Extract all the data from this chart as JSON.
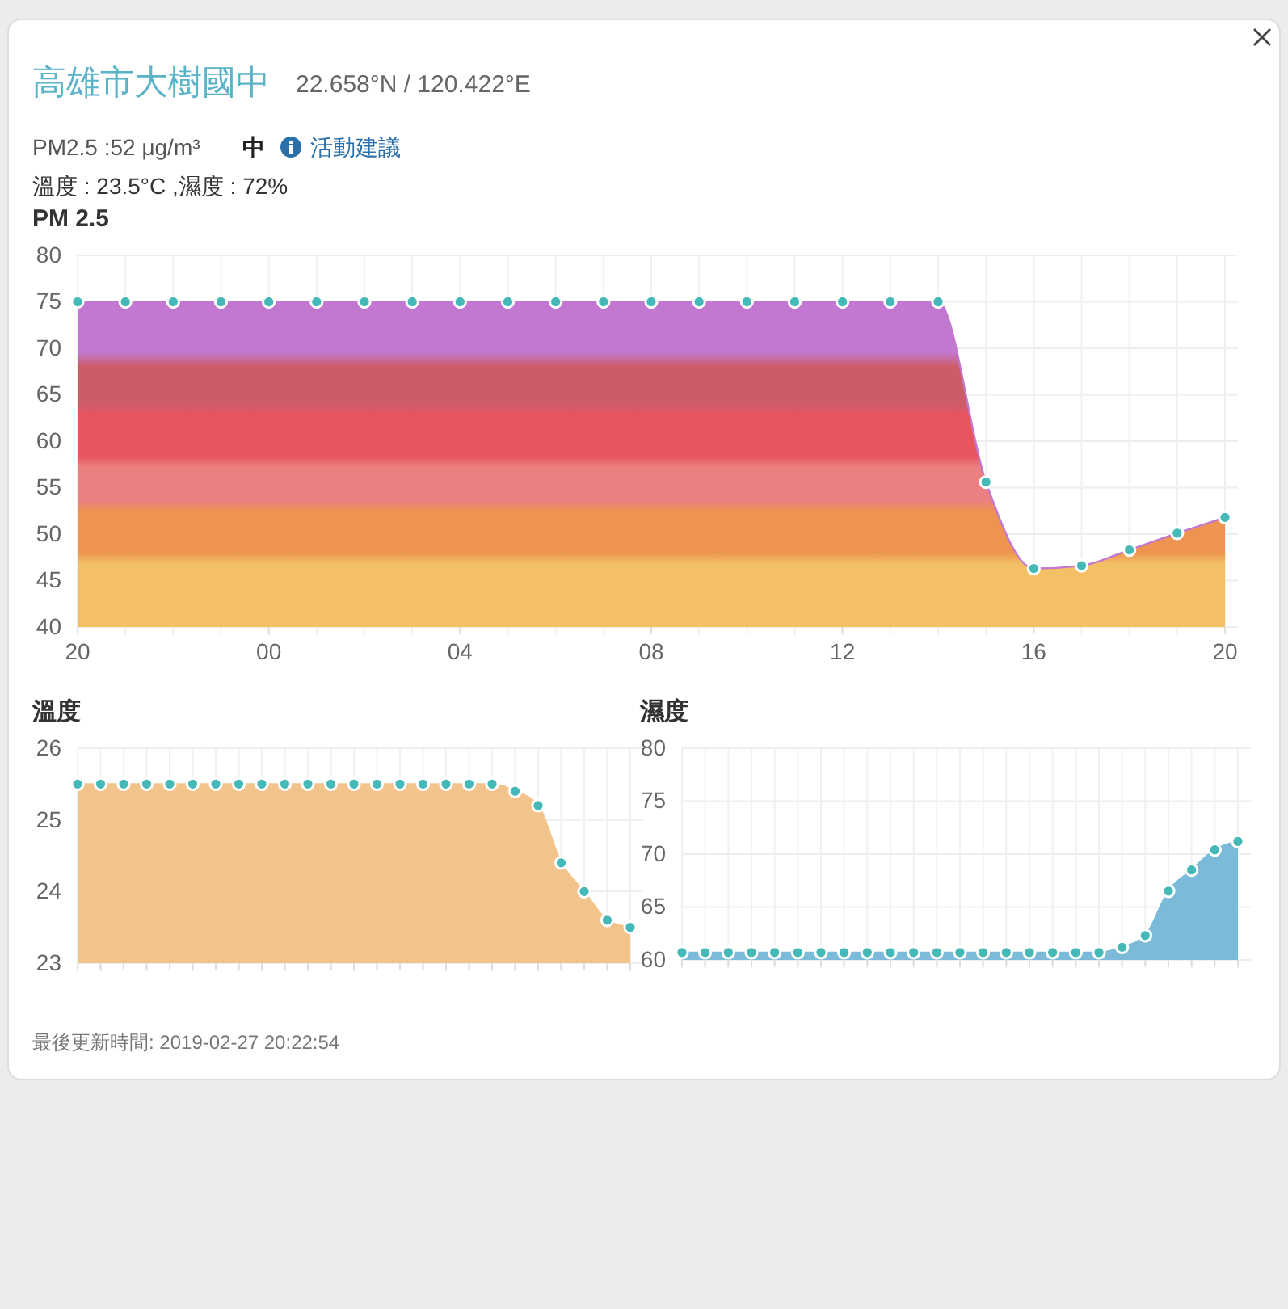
{
  "chart_data": [
    {
      "type": "other",
      "title": "高雄市大樹國中",
      "subtitle": "22.658°N / 120.422°E",
      "annotations": [
        "PM2.5 :52 μg/m³",
        "中",
        "活動建議",
        "溫度 : 23.5°C ,濕度 : 72%",
        "最後更新時間: 2019-02-27 20:22:54"
      ]
    },
    {
      "type": "area",
      "title": "PM 2.5",
      "x": [
        "2019-02-26T20:00",
        "2019-02-26T21:00",
        "2019-02-26T22:00",
        "2019-02-26T23:00",
        "2019-02-27T00:00",
        "2019-02-27T01:00",
        "2019-02-27T02:00",
        "2019-02-27T03:00",
        "2019-02-27T04:00",
        "2019-02-27T05:00",
        "2019-02-27T06:00",
        "2019-02-27T07:00",
        "2019-02-27T08:00",
        "2019-02-27T09:00",
        "2019-02-27T10:00",
        "2019-02-27T11:00",
        "2019-02-27T12:00",
        "2019-02-27T13:00",
        "2019-02-27T14:00",
        "2019-02-27T15:00",
        "2019-02-27T16:00",
        "2019-02-27T17:00",
        "2019-02-27T18:00",
        "2019-02-27T19:00",
        "2019-02-27T20:00"
      ],
      "series": [
        {
          "color": "#c278d0",
          "values": [
            75,
            75,
            75,
            75,
            75,
            75,
            75,
            75,
            75,
            75,
            75,
            75,
            75,
            75,
            75,
            75,
            75,
            75,
            75,
            55.6,
            46.3,
            46.6,
            48.3,
            50.1,
            51.8
          ]
        }
      ],
      "xlim": [
        "2019-02-26T20:00",
        "2019-02-27T20:00"
      ],
      "xticks": [
        {
          "value": "2019-02-26T20:00",
          "label": "20"
        },
        {
          "value": "2019-02-27T00:00",
          "label": "00"
        },
        {
          "value": "2019-02-27T04:00",
          "label": "04"
        },
        {
          "value": "2019-02-27T08:00",
          "label": "08"
        },
        {
          "value": "2019-02-27T12:00",
          "label": "12"
        },
        {
          "value": "2019-02-27T16:00",
          "label": "16"
        },
        {
          "value": "2019-02-27T20:00",
          "label": "20"
        }
      ],
      "ylim": [
        40,
        80
      ],
      "yticks": [
        40,
        45,
        50,
        55,
        60,
        65,
        70,
        75,
        80
      ],
      "grid": true,
      "marker": "circle"
    },
    {
      "type": "area",
      "title": "溫度",
      "categories": [
        null,
        null,
        null,
        null,
        null,
        null,
        null,
        null,
        null,
        null,
        null,
        null,
        null,
        null,
        null,
        null,
        null,
        null,
        null,
        null,
        null,
        null,
        null,
        null,
        null
      ],
      "series": [
        {
          "color": "#f2c48c",
          "values": [
            25.5,
            25.5,
            25.5,
            25.5,
            25.5,
            25.5,
            25.5,
            25.5,
            25.5,
            25.5,
            25.5,
            25.5,
            25.5,
            25.5,
            25.5,
            25.5,
            25.5,
            25.5,
            25.5,
            25.4,
            25.2,
            24.4,
            24.0,
            23.6,
            23.5
          ]
        }
      ],
      "ylim": [
        23,
        26
      ],
      "yticks": [
        23,
        24,
        25,
        26
      ],
      "grid": true,
      "marker": "circle",
      "tick_labels": "y"
    },
    {
      "type": "area",
      "title": "濕度",
      "categories": [
        null,
        null,
        null,
        null,
        null,
        null,
        null,
        null,
        null,
        null,
        null,
        null,
        null,
        null,
        null,
        null,
        null,
        null,
        null,
        null,
        null,
        null,
        null,
        null,
        null
      ],
      "series": [
        {
          "color": "#7bbbd9",
          "values": [
            60.7,
            60.7,
            60.7,
            60.7,
            60.7,
            60.7,
            60.7,
            60.7,
            60.7,
            60.7,
            60.7,
            60.7,
            60.7,
            60.7,
            60.7,
            60.7,
            60.7,
            60.7,
            60.7,
            61.2,
            62.3,
            66.5,
            68.5,
            70.4,
            71.2
          ]
        }
      ],
      "ylim": [
        60,
        80
      ],
      "yticks": [
        60,
        65,
        70,
        75,
        80
      ],
      "grid": true,
      "marker": "circle",
      "tick_labels": "y"
    }
  ]
}
